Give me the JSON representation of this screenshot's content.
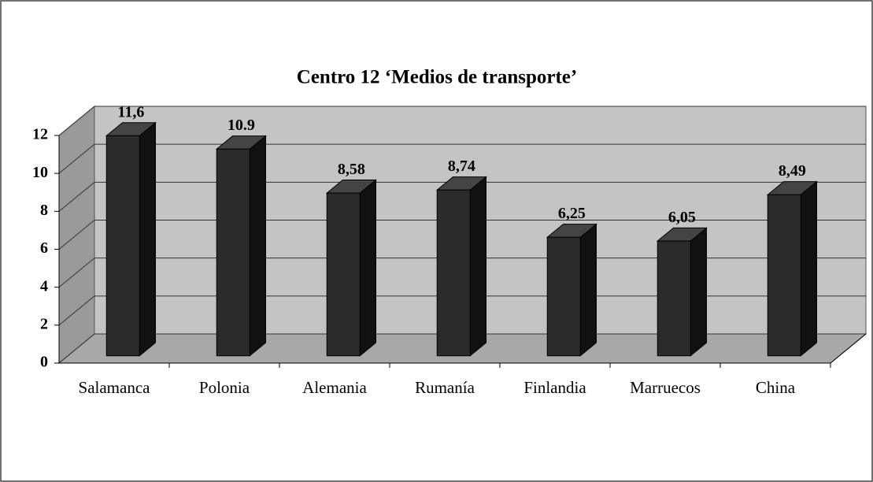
{
  "chart_data": {
    "type": "bar",
    "title": "Centro 12 ‘Medios de transporte’",
    "categories": [
      "Salamanca",
      "Polonia",
      "Alemania",
      "Rumanía",
      "Finlandia",
      "Marruecos",
      "China"
    ],
    "values": [
      11.6,
      10.9,
      8.58,
      8.74,
      6.25,
      6.05,
      8.49
    ],
    "value_labels": [
      "11,6",
      "10.9",
      "8,58",
      "8,74",
      "6,25",
      "6,05",
      "8,49"
    ],
    "color": "#2b2b2b",
    "ylim": [
      0,
      12
    ],
    "yticks": [
      0,
      2,
      4,
      6,
      8,
      10,
      12
    ],
    "grid": true
  }
}
